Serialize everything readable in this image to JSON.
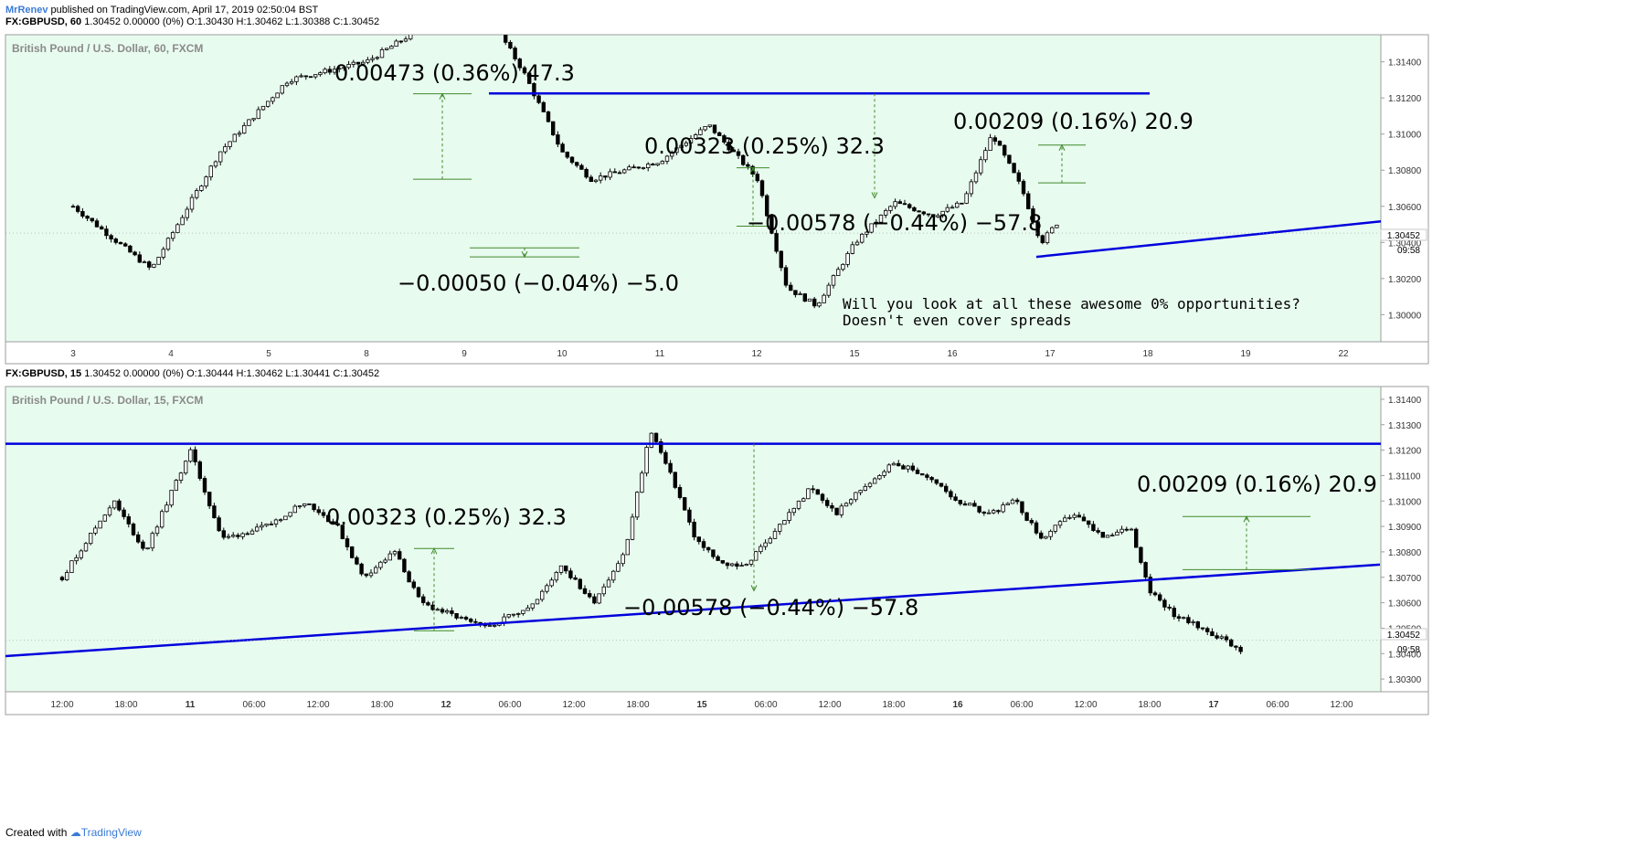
{
  "header": {
    "author": "MrRenev",
    "published_text": "published on TradingView.com, April 17, 2019 02:50:04 BST"
  },
  "colors": {
    "panel_bg": "#e8fbef",
    "trendline": "#0000dd",
    "measure": "#3f8a2a",
    "candle": "#000000"
  },
  "panels": [
    {
      "quote_symbol": "FX:GBPUSD, 60",
      "quote_rest": " 1.30452 0.00000 (0%) O:1.30430 H:1.30462 L:1.30388 C:1.30452",
      "instrument_label": "British Pound / U.S. Dollar, 60, FXCM",
      "price_ticks": [
        "1.31400",
        "1.31200",
        "1.31000",
        "1.30800",
        "1.30600",
        "1.30400",
        "1.30200",
        "1.30000"
      ],
      "last_price": "1.30452",
      "countdown": "09:58",
      "time_ticks": [
        "3",
        "4",
        "5",
        "8",
        "9",
        "10",
        "11",
        "12",
        "15",
        "16",
        "17",
        "18",
        "19",
        "22"
      ],
      "measurements": [
        "0.00473 (0.36%) 47.3",
        "0.00323 (0.25%) 32.3",
        "0.00209 (0.16%) 20.9",
        "−0.00578 (−0.44%) −57.8",
        "−0.00050 (−0.04%) −5.0"
      ],
      "note_lines": [
        "Will you look at all these awesome 0% opportunities?",
        "Doesn't even cover spreads"
      ]
    },
    {
      "quote_symbol": "FX:GBPUSD, 15",
      "quote_rest": " 1.30452 0.00000 (0%) O:1.30444 H:1.30462 L:1.30441 C:1.30452",
      "instrument_label": "British Pound / U.S. Dollar, 15, FXCM",
      "price_ticks": [
        "1.31400",
        "1.31300",
        "1.31200",
        "1.31100",
        "1.31000",
        "1.30900",
        "1.30800",
        "1.30700",
        "1.30600",
        "1.30500",
        "1.30400",
        "1.30300"
      ],
      "last_price": "1.30452",
      "countdown": "09:58",
      "time_ticks": [
        "12:00",
        "18:00",
        "11",
        "06:00",
        "12:00",
        "18:00",
        "12",
        "06:00",
        "12:00",
        "18:00",
        "15",
        "06:00",
        "12:00",
        "18:00",
        "16",
        "06:00",
        "12:00",
        "18:00",
        "17",
        "06:00",
        "12:00"
      ],
      "measurements": [
        "0.00323 (0.25%) 32.3",
        "0.00209 (0.16%) 20.9",
        "−0.00578 (−0.44%) −57.8"
      ]
    }
  ],
  "footer": {
    "created_with": "Created with",
    "brand": "TradingView"
  },
  "chart_data": [
    {
      "type": "candlestick",
      "title": "British Pound / U.S. Dollar, 60, FXCM",
      "symbol": "FX:GBPUSD",
      "interval": "60",
      "ylim": [
        1.2985,
        1.3155
      ],
      "x_ticks": [
        "3",
        "4",
        "5",
        "8",
        "9",
        "10",
        "11",
        "12",
        "15",
        "16",
        "17",
        "18",
        "19",
        "22"
      ],
      "last_close": 1.30452,
      "ohlc_last": {
        "open": 1.3043,
        "high": 1.30462,
        "low": 1.30388,
        "close": 1.30452
      },
      "price_path": [
        {
          "x": 0.0,
          "p": 1.306
        },
        {
          "x": 0.8,
          "p": 1.3025
        },
        {
          "x": 1.5,
          "p": 1.309
        },
        {
          "x": 2.2,
          "p": 1.313
        },
        {
          "x": 3.0,
          "p": 1.314
        },
        {
          "x": 3.6,
          "p": 1.316
        },
        {
          "x": 4.2,
          "p": 1.317
        },
        {
          "x": 4.6,
          "p": 1.3135
        },
        {
          "x": 5.0,
          "p": 1.309
        },
        {
          "x": 5.3,
          "p": 1.3075
        },
        {
          "x": 6.0,
          "p": 1.3085
        },
        {
          "x": 6.5,
          "p": 1.3105
        },
        {
          "x": 7.0,
          "p": 1.3075
        },
        {
          "x": 7.3,
          "p": 1.3015
        },
        {
          "x": 7.6,
          "p": 1.3005
        },
        {
          "x": 8.0,
          "p": 1.304
        },
        {
          "x": 8.4,
          "p": 1.3062
        },
        {
          "x": 8.8,
          "p": 1.3055
        },
        {
          "x": 9.1,
          "p": 1.3062
        },
        {
          "x": 9.4,
          "p": 1.31
        },
        {
          "x": 9.7,
          "p": 1.307
        },
        {
          "x": 9.9,
          "p": 1.304
        },
        {
          "x": 10.2,
          "p": 1.306
        },
        {
          "x": 10.6,
          "p": 1.308
        },
        {
          "x": 10.9,
          "p": 1.31
        },
        {
          "x": 11.2,
          "p": 1.309
        },
        {
          "x": 11.6,
          "p": 1.3095
        },
        {
          "x": 11.9,
          "p": 1.3065
        },
        {
          "x": 12.3,
          "p": 1.3055
        },
        {
          "x": 12.7,
          "p": 1.307
        },
        {
          "x": 13.0,
          "p": 1.3115
        },
        {
          "x": 13.3,
          "p": 1.3085
        },
        {
          "x": 13.6,
          "p": 1.3075
        },
        {
          "x": 14.0,
          "p": 1.3095
        },
        {
          "x": 14.4,
          "p": 1.311
        },
        {
          "x": 14.9,
          "p": 1.31
        },
        {
          "x": 15.3,
          "p": 1.3085
        },
        {
          "x": 15.6,
          "p": 1.309
        },
        {
          "x": 15.9,
          "p": 1.306
        },
        {
          "x": 16.2,
          "p": 1.305
        },
        {
          "x": 16.5,
          "p": 1.3045
        }
      ],
      "annotations": [
        {
          "type": "horizontal_line",
          "price": 1.31225
        },
        {
          "type": "trendline",
          "from": {
            "x": 9.85,
            "p": 1.3032
          },
          "to": {
            "x": 18.0,
            "p": 1.30775
          }
        },
        {
          "type": "measure",
          "label": "0.00473 (0.36%) 47.3",
          "from": 1.3075,
          "to": 1.31223
        },
        {
          "type": "measure",
          "label": "0.00323 (0.25%) 32.3",
          "from": 1.3049,
          "to": 1.30813
        },
        {
          "type": "measure",
          "label": "0.00209 (0.16%) 20.9",
          "from": 1.3073,
          "to": 1.30939
        },
        {
          "type": "measure",
          "label": "−0.00578 (−0.44%) −57.8",
          "from": 1.31225,
          "to": 1.30647
        },
        {
          "type": "measure",
          "label": "−0.00050 (−0.04%) −5.0",
          "from": 1.3037,
          "to": 1.3032
        }
      ],
      "note": "Will you look at all these awesome 0% opportunities? Doesn't even cover spreads"
    },
    {
      "type": "candlestick",
      "title": "British Pound / U.S. Dollar, 15, FXCM",
      "symbol": "FX:GBPUSD",
      "interval": "15",
      "ylim": [
        1.3025,
        1.3145
      ],
      "x_ticks": [
        "12:00",
        "18:00",
        "11",
        "06:00",
        "12:00",
        "18:00",
        "12",
        "06:00",
        "12:00",
        "18:00",
        "15",
        "06:00",
        "12:00",
        "18:00",
        "16",
        "06:00",
        "12:00",
        "18:00",
        "17",
        "06:00",
        "12:00"
      ],
      "last_close": 1.30452,
      "ohlc_last": {
        "open": 1.30444,
        "high": 1.30462,
        "low": 1.30441,
        "close": 1.30452
      },
      "price_path": [
        {
          "x": 0.0,
          "p": 1.307
        },
        {
          "x": 0.8,
          "p": 1.31
        },
        {
          "x": 1.3,
          "p": 1.308
        },
        {
          "x": 2.0,
          "p": 1.312
        },
        {
          "x": 2.5,
          "p": 1.3085
        },
        {
          "x": 3.2,
          "p": 1.309
        },
        {
          "x": 3.8,
          "p": 1.31
        },
        {
          "x": 4.3,
          "p": 1.309
        },
        {
          "x": 4.7,
          "p": 1.307
        },
        {
          "x": 5.2,
          "p": 1.308
        },
        {
          "x": 5.6,
          "p": 1.306
        },
        {
          "x": 6.1,
          "p": 1.3055
        },
        {
          "x": 6.6,
          "p": 1.305
        },
        {
          "x": 7.0,
          "p": 1.3055
        },
        {
          "x": 7.4,
          "p": 1.306
        },
        {
          "x": 7.8,
          "p": 1.3075
        },
        {
          "x": 8.3,
          "p": 1.306
        },
        {
          "x": 8.8,
          "p": 1.308
        },
        {
          "x": 9.2,
          "p": 1.3128
        },
        {
          "x": 9.6,
          "p": 1.3105
        },
        {
          "x": 9.9,
          "p": 1.3085
        },
        {
          "x": 10.3,
          "p": 1.3075
        },
        {
          "x": 10.7,
          "p": 1.3075
        },
        {
          "x": 11.2,
          "p": 1.309
        },
        {
          "x": 11.7,
          "p": 1.3105
        },
        {
          "x": 12.1,
          "p": 1.3095
        },
        {
          "x": 12.5,
          "p": 1.3105
        },
        {
          "x": 13.0,
          "p": 1.3115
        },
        {
          "x": 13.5,
          "p": 1.311
        },
        {
          "x": 14.0,
          "p": 1.31
        },
        {
          "x": 14.5,
          "p": 1.3095
        },
        {
          "x": 14.9,
          "p": 1.31
        },
        {
          "x": 15.3,
          "p": 1.3085
        },
        {
          "x": 15.8,
          "p": 1.3095
        },
        {
          "x": 16.3,
          "p": 1.3085
        },
        {
          "x": 16.7,
          "p": 1.309
        },
        {
          "x": 17.0,
          "p": 1.3065
        },
        {
          "x": 17.4,
          "p": 1.3055
        },
        {
          "x": 17.8,
          "p": 1.305
        },
        {
          "x": 18.2,
          "p": 1.3045
        },
        {
          "x": 18.5,
          "p": 1.304
        },
        {
          "x": 18.8,
          "p": 1.3045
        }
      ],
      "annotations": [
        {
          "type": "horizontal_line",
          "price": 1.31225
        },
        {
          "type": "trendline",
          "from": {
            "x": -0.9,
            "p": 1.3039
          },
          "to": {
            "x": 20.6,
            "p": 1.3075
          }
        },
        {
          "type": "measure",
          "label": "0.00323 (0.25%) 32.3",
          "from": 1.3049,
          "to": 1.30813
        },
        {
          "type": "measure",
          "label": "0.00209 (0.16%) 20.9",
          "from": 1.3073,
          "to": 1.30939
        },
        {
          "type": "measure",
          "label": "−0.00578 (−0.44%) −57.8",
          "from": 1.31225,
          "to": 1.30647
        }
      ]
    }
  ]
}
